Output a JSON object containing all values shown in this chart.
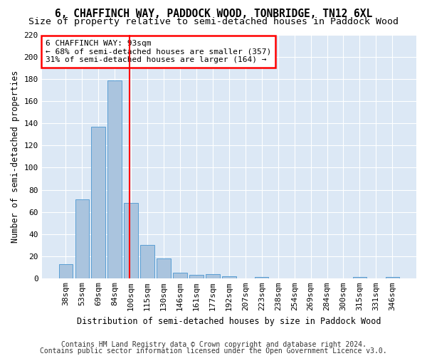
{
  "title": "6, CHAFFINCH WAY, PADDOCK WOOD, TONBRIDGE, TN12 6XL",
  "subtitle": "Size of property relative to semi-detached houses in Paddock Wood",
  "xlabel": "Distribution of semi-detached houses by size in Paddock Wood",
  "ylabel": "Number of semi-detached properties",
  "categories": [
    "38sqm",
    "53sqm",
    "69sqm",
    "84sqm",
    "100sqm",
    "115sqm",
    "130sqm",
    "146sqm",
    "161sqm",
    "177sqm",
    "192sqm",
    "207sqm",
    "223sqm",
    "238sqm",
    "254sqm",
    "269sqm",
    "284sqm",
    "300sqm",
    "315sqm",
    "331sqm",
    "346sqm"
  ],
  "values": [
    13,
    71,
    137,
    179,
    68,
    30,
    18,
    5,
    3,
    4,
    2,
    0,
    1,
    0,
    0,
    0,
    0,
    0,
    1,
    0,
    1
  ],
  "bar_color": "#aac4de",
  "bar_edge_color": "#5a9fd4",
  "red_line_x": 3.925,
  "annotation_text": "6 CHAFFINCH WAY: 93sqm\n← 68% of semi-detached houses are smaller (357)\n31% of semi-detached houses are larger (164) →",
  "ylim": [
    0,
    220
  ],
  "yticks": [
    0,
    20,
    40,
    60,
    80,
    100,
    120,
    140,
    160,
    180,
    200,
    220
  ],
  "footer1": "Contains HM Land Registry data © Crown copyright and database right 2024.",
  "footer2": "Contains public sector information licensed under the Open Government Licence v3.0.",
  "bg_color": "#dce8f5",
  "grid_color": "#ffffff",
  "title_fontsize": 10.5,
  "subtitle_fontsize": 9.5,
  "axis_label_fontsize": 8.5,
  "tick_fontsize": 8,
  "annotation_fontsize": 8,
  "footer_fontsize": 7
}
